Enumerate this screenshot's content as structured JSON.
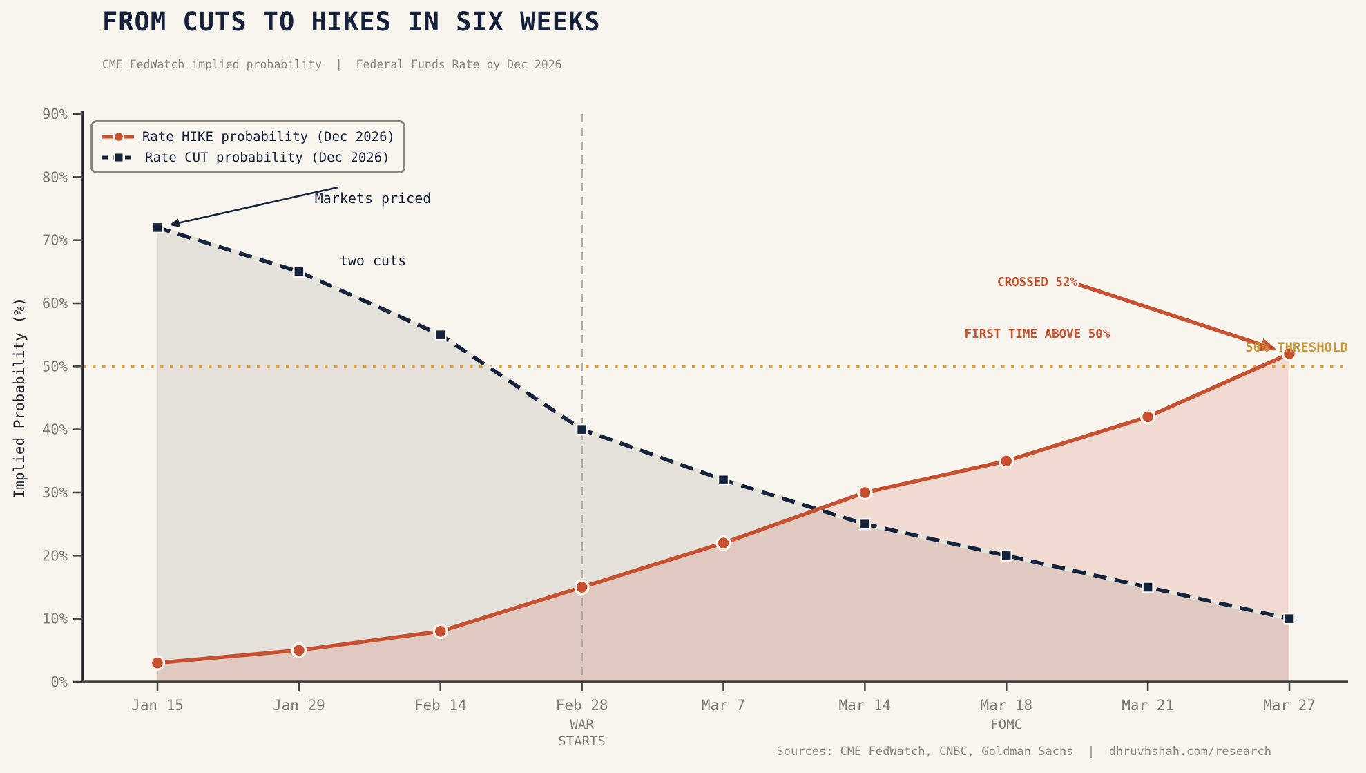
{
  "header": {
    "title": "FROM CUTS TO HIKES IN SIX WEEKS",
    "subtitle": "CME FedWatch implied probability  |  Federal Funds Rate by Dec 2026"
  },
  "footer": {
    "sources": "Sources: CME FedWatch, CNBC, Goldman Sachs  |  dhruvhshah.com/research"
  },
  "colors": {
    "background": "#F8F4EE",
    "hike": "#C6502F",
    "cut": "#15223C",
    "hike_fill": "rgba(199,74,50,0.15)",
    "cut_fill": "rgba(95,95,88,0.13)",
    "gold": "#D3A04C",
    "gold_text": "#C8983D",
    "vline_gray": "#ABA9A1",
    "tick_text": "#7E7C73",
    "spine_left": "#20202A",
    "spine_bottom": "#43413B"
  },
  "annotations": {
    "markets_priced": {
      "line1": "Markets priced",
      "line2": "two cuts"
    },
    "crossed": {
      "line1": "CROSSED 52%",
      "line2": "FIRST TIME ABOVE 50%"
    },
    "threshold_label": "50% THRESHOLD"
  },
  "chart_data": {
    "type": "line",
    "title": "FROM CUTS TO HIKES IN SIX WEEKS",
    "subtitle": "CME FedWatch implied probability | Federal Funds Rate by Dec 2026",
    "xlabel": "",
    "ylabel": "Implied Probability (%)",
    "ylim": [
      0,
      90
    ],
    "yticks": [
      0,
      10,
      20,
      30,
      40,
      50,
      60,
      70,
      80,
      90
    ],
    "ytick_suffix": "%",
    "grid": false,
    "legend_position": "upper-left",
    "categories": [
      "Jan 15",
      "Jan 29",
      "Feb 14",
      "Feb 28",
      "Mar 7",
      "Mar 14",
      "Mar 18",
      "Mar 21",
      "Mar 27"
    ],
    "category_sublabels": [
      null,
      null,
      null,
      [
        "WAR",
        "STARTS"
      ],
      null,
      null,
      [
        "FOMC"
      ],
      null,
      null
    ],
    "series": [
      {
        "name": "Rate HIKE probability (Dec 2026)",
        "color": "#C6502F",
        "line_style": "solid",
        "marker": "circle",
        "area_fill": true,
        "values": [
          3,
          5,
          8,
          15,
          22,
          30,
          35,
          42,
          52
        ]
      },
      {
        "name": "Rate CUT probability (Dec 2026)",
        "color": "#15223C",
        "line_style": "dashed",
        "marker": "square",
        "area_fill": true,
        "values": [
          72,
          65,
          55,
          40,
          32,
          25,
          20,
          15,
          10
        ]
      }
    ],
    "threshold_line": {
      "value": 50,
      "style": "dotted",
      "color": "#D3A04C",
      "label": "50% THRESHOLD"
    },
    "vertical_line": {
      "at_category": "Feb 28",
      "style": "dashed",
      "color": "#ABA9A1"
    }
  }
}
